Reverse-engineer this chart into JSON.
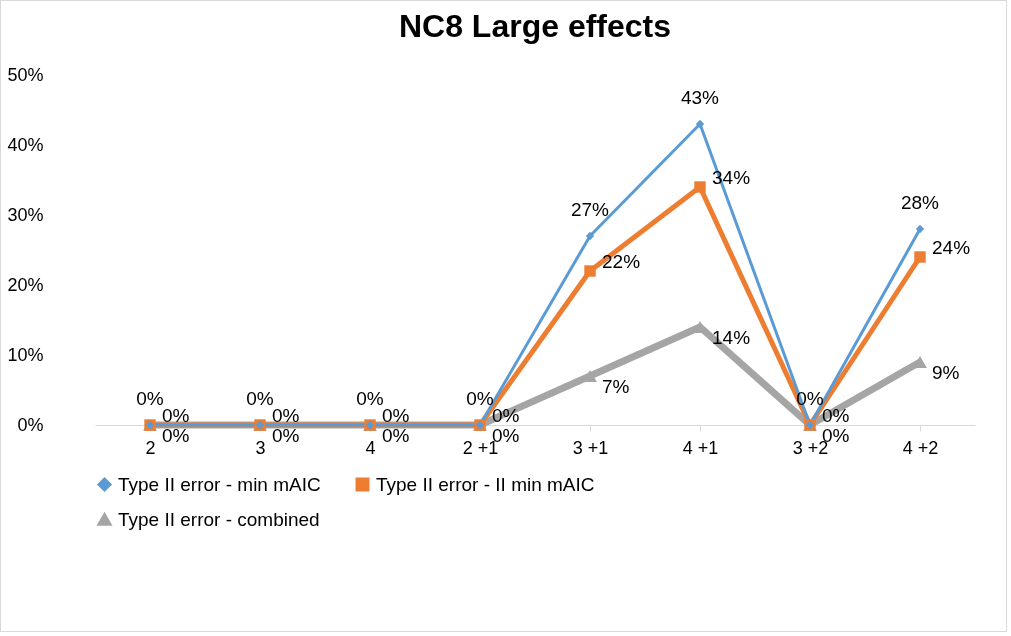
{
  "chart_data": {
    "type": "line",
    "title": "NC8 Large effects",
    "categories": [
      "2",
      "3",
      "4",
      "2  +1",
      "3  +1",
      "4  +1",
      "3  +2",
      "4  +2"
    ],
    "ylim": [
      0,
      50
    ],
    "yticks": [
      {
        "value": 0,
        "label": "0%"
      },
      {
        "value": 10,
        "label": "10%"
      },
      {
        "value": 20,
        "label": "20%"
      },
      {
        "value": 30,
        "label": "30%"
      },
      {
        "value": 40,
        "label": "40%"
      },
      {
        "value": 50,
        "label": "50%"
      }
    ],
    "grid": false,
    "legend": "bottom",
    "series": [
      {
        "name": "Type II error - min mAIC",
        "color": "#5b9bd5",
        "marker": "diamond",
        "values": [
          0,
          0,
          0,
          0,
          27,
          43,
          0,
          28
        ],
        "value_labels": [
          "0%",
          "0%",
          "0%",
          "0%",
          "27%",
          "43%",
          "0%",
          "28%"
        ]
      },
      {
        "name": "Type II error - II min mAIC",
        "color": "#ed7d31",
        "marker": "square",
        "values": [
          0,
          0,
          0,
          0,
          22,
          34,
          0,
          24
        ],
        "value_labels": [
          "0%",
          "0%",
          "0%",
          "0%",
          "22%",
          "34%",
          "0%",
          "24%"
        ]
      },
      {
        "name": "Type II error - combined",
        "color": "#a5a5a5",
        "marker": "triangle",
        "values": [
          0,
          0,
          0,
          0,
          7,
          14,
          0,
          9
        ],
        "value_labels": [
          "0%",
          "0%",
          "0%",
          "0%",
          "7%",
          "14%",
          "0%",
          "9%"
        ]
      }
    ]
  }
}
